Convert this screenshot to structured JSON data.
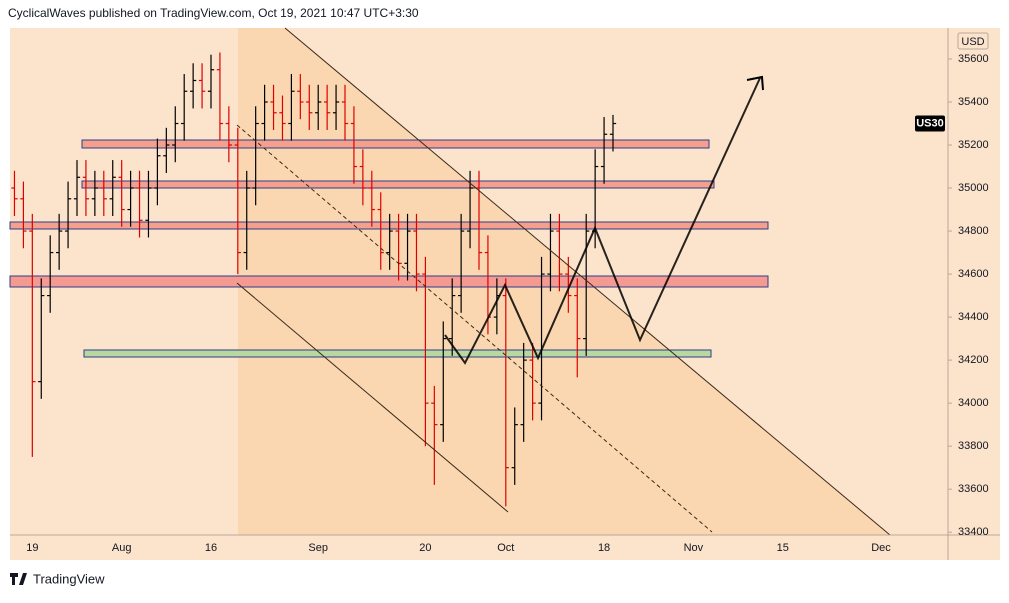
{
  "header": "CyclicalWaves published on TradingView.com, Oct 19, 2021 10:47 UTC+3:30",
  "footer": "TradingView",
  "chart_data": {
    "type": "ohlc",
    "currency": "USD",
    "symbol": "US30",
    "categories": [
      null,
      null,
      "19",
      null,
      null,
      null,
      null,
      null,
      null,
      null,
      null,
      null,
      "Aug",
      null,
      null,
      null,
      null,
      null,
      null,
      null,
      null,
      null,
      "16",
      null,
      null,
      null,
      null,
      null,
      null,
      null,
      null,
      null,
      null,
      null,
      "Sep",
      null,
      null,
      null,
      null,
      null,
      null,
      null,
      null,
      null,
      null,
      null,
      "20",
      null,
      null,
      null,
      null,
      null,
      null,
      null,
      null,
      "Oct",
      null,
      null,
      null,
      null,
      null,
      null,
      null,
      null,
      null,
      null,
      "18",
      null,
      null,
      null,
      null,
      null,
      null,
      null,
      null,
      null,
      "Nov",
      null,
      null,
      null,
      null,
      null,
      null,
      null,
      null,
      null,
      "15",
      null,
      null,
      null,
      null,
      null,
      null,
      null,
      null,
      null,
      null,
      "Dec",
      null,
      null,
      null,
      null,
      null,
      null,
      null
    ],
    "open": [
      35000,
      34950,
      34800,
      34100,
      34500,
      34700,
      34800,
      34950,
      35050,
      34950,
      35000,
      34950,
      35050,
      34900,
      35000,
      34850,
      35000,
      35150,
      35200,
      35300,
      35450,
      35500,
      35450,
      35550,
      35300,
      35200,
      34700,
      35000,
      35300,
      35400,
      35350,
      35300,
      35450,
      35400,
      35350,
      35400,
      35350,
      35400,
      35300,
      35100,
      35000,
      34900,
      34700,
      34800,
      34650,
      34800,
      34600,
      34000,
      33900,
      34300,
      34500,
      34800,
      35000,
      34700,
      34400,
      34500,
      33700,
      33900,
      34200,
      34000,
      34600,
      34800,
      34600,
      34500,
      34300,
      34800,
      35100,
      35250,
      null,
      null,
      null,
      null,
      null,
      null,
      null,
      null,
      null,
      null,
      null,
      null,
      null,
      null,
      null,
      null,
      null,
      null,
      null,
      null,
      null,
      null,
      null,
      null,
      null,
      null,
      null,
      null,
      null,
      null,
      null,
      null,
      null,
      null,
      null,
      null,
      null
    ],
    "high": [
      35080,
      35030,
      34880,
      34580,
      34780,
      34880,
      35030,
      35130,
      35130,
      35080,
      35080,
      35130,
      35130,
      35080,
      35080,
      35080,
      35230,
      35280,
      35380,
      35530,
      35580,
      35580,
      35620,
      35630,
      35380,
      35280,
      35080,
      35380,
      35480,
      35480,
      35430,
      35530,
      35530,
      35480,
      35480,
      35480,
      35480,
      35480,
      35380,
      35180,
      35080,
      34980,
      34880,
      34880,
      34880,
      34880,
      34680,
      34080,
      34380,
      34580,
      34880,
      35080,
      35080,
      34780,
      34580,
      34580,
      33980,
      34280,
      34280,
      34680,
      34880,
      34880,
      34680,
      34580,
      34880,
      35180,
      35330,
      35340,
      null,
      null,
      null,
      null,
      null,
      null,
      null,
      null,
      null,
      null,
      null,
      null,
      null,
      null,
      null,
      null,
      null,
      null,
      null,
      null,
      null,
      null,
      null,
      null,
      null,
      null,
      null,
      null,
      null,
      null,
      null,
      null,
      null,
      null,
      null,
      null,
      null
    ],
    "low": [
      34870,
      34720,
      33750,
      34020,
      34420,
      34620,
      34720,
      34870,
      34870,
      34870,
      34870,
      34870,
      34820,
      34820,
      34770,
      34770,
      34920,
      35070,
      35120,
      35220,
      35370,
      35370,
      35370,
      35220,
      35120,
      34600,
      34620,
      34920,
      35220,
      35270,
      35220,
      35220,
      35320,
      35270,
      35270,
      35270,
      35270,
      35220,
      35020,
      34920,
      34820,
      34620,
      34620,
      34570,
      34570,
      34520,
      33800,
      33620,
      33820,
      34220,
      34420,
      34720,
      34620,
      34320,
      34320,
      33520,
      33620,
      33820,
      33920,
      33920,
      34520,
      34520,
      34420,
      34120,
      34220,
      34720,
      35020,
      35170,
      null,
      null,
      null,
      null,
      null,
      null,
      null,
      null,
      null,
      null,
      null,
      null,
      null,
      null,
      null,
      null,
      null,
      null,
      null,
      null,
      null,
      null,
      null,
      null,
      null,
      null,
      null,
      null,
      null,
      null,
      null,
      null,
      null,
      null,
      null,
      null,
      null
    ],
    "close": [
      34950,
      34800,
      34100,
      34500,
      34700,
      34800,
      34950,
      35050,
      34950,
      35000,
      34950,
      35050,
      34900,
      35000,
      34850,
      35000,
      35150,
      35200,
      35300,
      35450,
      35500,
      35450,
      35550,
      35300,
      35200,
      34700,
      35000,
      35300,
      35400,
      35350,
      35300,
      35450,
      35400,
      35350,
      35400,
      35350,
      35400,
      35300,
      35100,
      35000,
      34900,
      34700,
      34800,
      34650,
      34800,
      34600,
      34000,
      33900,
      34300,
      34500,
      34800,
      35000,
      34700,
      34400,
      34500,
      33700,
      33900,
      34200,
      34000,
      34600,
      34800,
      34600,
      34500,
      34300,
      34800,
      35100,
      35250,
      35300,
      null,
      null,
      null,
      null,
      null,
      null,
      null,
      null,
      null,
      null,
      null,
      null,
      null,
      null,
      null,
      null,
      null,
      null,
      null,
      null,
      null,
      null,
      null,
      null,
      null,
      null,
      null,
      null,
      null,
      null,
      null,
      null,
      null,
      null,
      null,
      null,
      null
    ],
    "up_color": "#000000",
    "down_color": "#e00000",
    "ylim": [
      33387,
      35744
    ],
    "yticks": [
      35600,
      35400,
      35200,
      35000,
      34800,
      34600,
      34400,
      34200,
      34000,
      33800,
      33600,
      33400
    ]
  }
}
